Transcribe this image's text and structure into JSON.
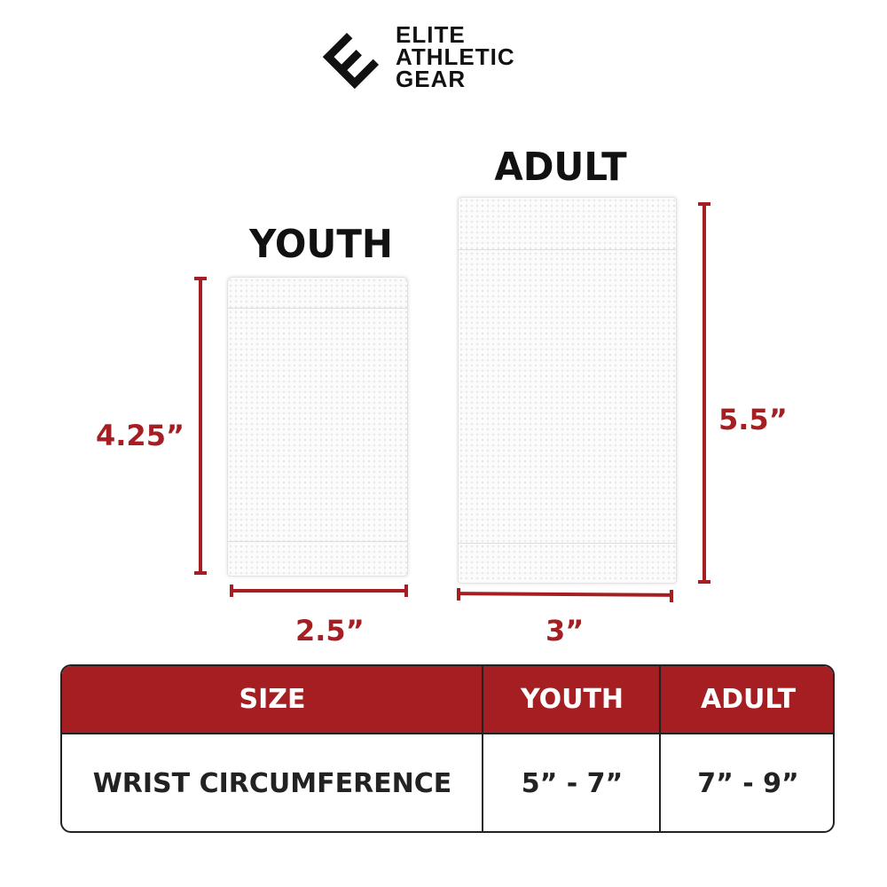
{
  "brand": {
    "logo_lines": [
      "ELITE",
      "ATHLETIC",
      "GEAR"
    ],
    "logo_icon": "e-diamond-logo"
  },
  "products": {
    "youth": {
      "title": "YOUTH",
      "height": "4.25”",
      "width": "2.5”"
    },
    "adult": {
      "title": "ADULT",
      "height": "5.5”",
      "width": "3”"
    }
  },
  "size_table": {
    "headers": [
      "SIZE",
      "YOUTH",
      "ADULT"
    ],
    "rows": [
      [
        "WRIST CIRCUMFERENCE",
        "5” - 7”",
        "7” - 9”"
      ]
    ]
  },
  "colors": {
    "accent": "#a51e22",
    "text": "#222222"
  }
}
